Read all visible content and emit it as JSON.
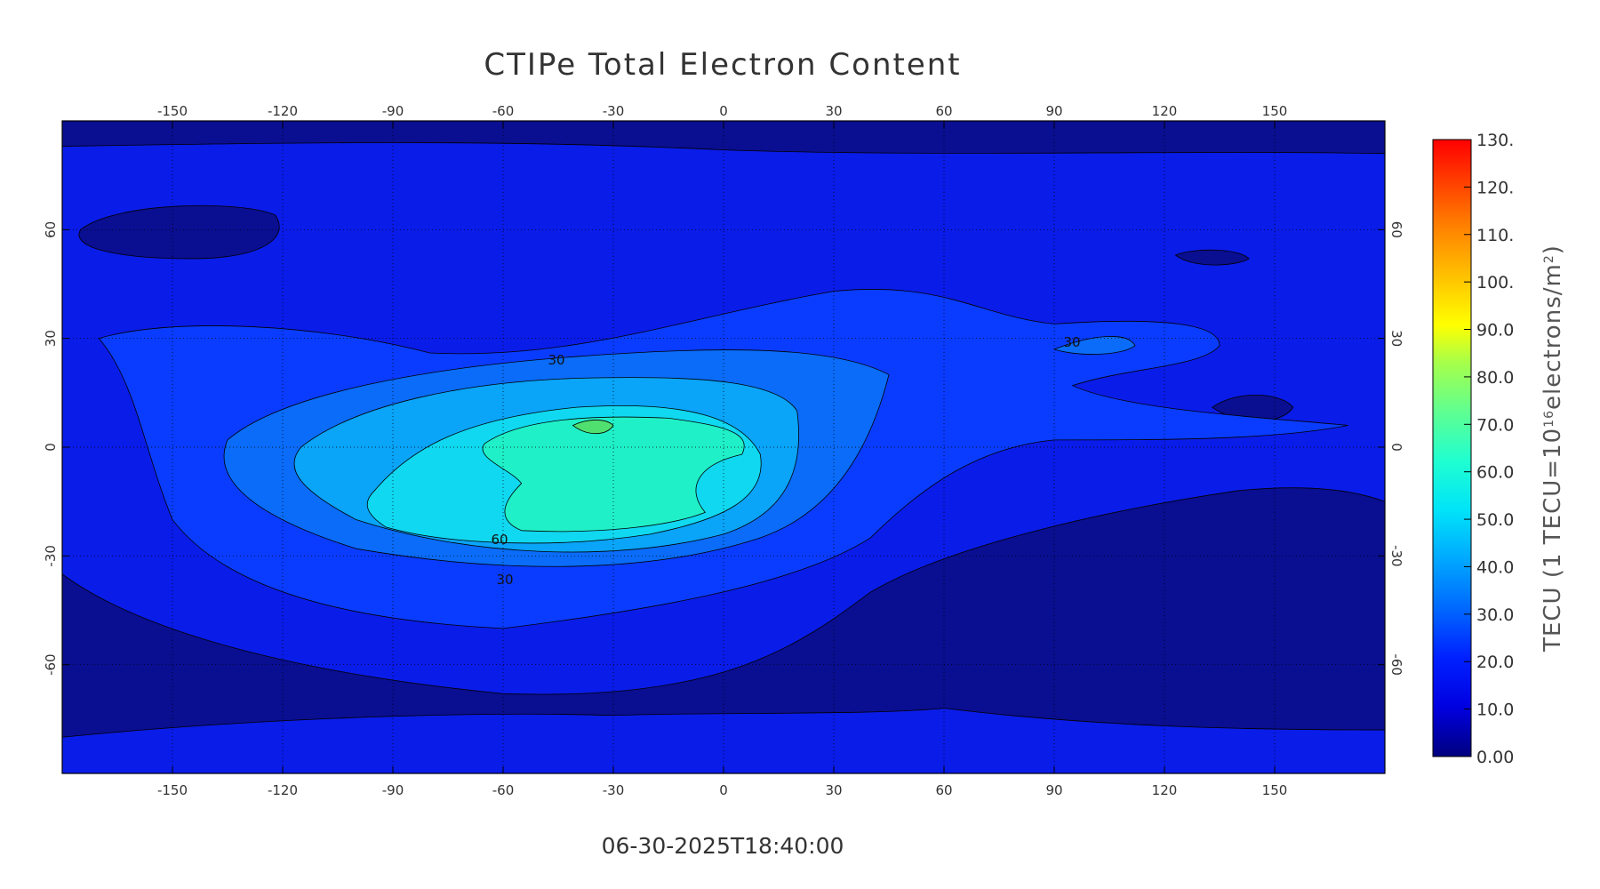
{
  "chart_data": {
    "type": "contour_map",
    "title": "CTIPe Total Electron Content",
    "timestamp": "06-30-2025T18:40:00",
    "xlim": [
      -180,
      180
    ],
    "ylim": [
      -90,
      90
    ],
    "xticks": [
      -150,
      -120,
      -90,
      -60,
      -30,
      0,
      30,
      60,
      90,
      120,
      150
    ],
    "yticks": [
      60,
      30,
      0,
      -30,
      -60
    ],
    "grid": true,
    "contour_labels": [
      "30",
      "30",
      "60",
      "30"
    ],
    "colorbar": {
      "label_parts": [
        "TECU  (1 TECU=10",
        "16",
        "electrons/m",
        "2",
        ")"
      ],
      "ylim": [
        0,
        130
      ],
      "ticks": [
        {
          "value": 130,
          "label": "130."
        },
        {
          "value": 120,
          "label": "120."
        },
        {
          "value": 110,
          "label": "110."
        },
        {
          "value": 100,
          "label": "100."
        },
        {
          "value": 90,
          "label": "90.0"
        },
        {
          "value": 80,
          "label": "80.0"
        },
        {
          "value": 70,
          "label": "70.0"
        },
        {
          "value": 60,
          "label": "60.0"
        },
        {
          "value": 50,
          "label": "50.0"
        },
        {
          "value": 40,
          "label": "40.0"
        },
        {
          "value": 30,
          "label": "30.0"
        },
        {
          "value": 20,
          "label": "20.0"
        },
        {
          "value": 10,
          "label": "10.0"
        },
        {
          "value": 0,
          "label": "0.00"
        }
      ]
    }
  }
}
